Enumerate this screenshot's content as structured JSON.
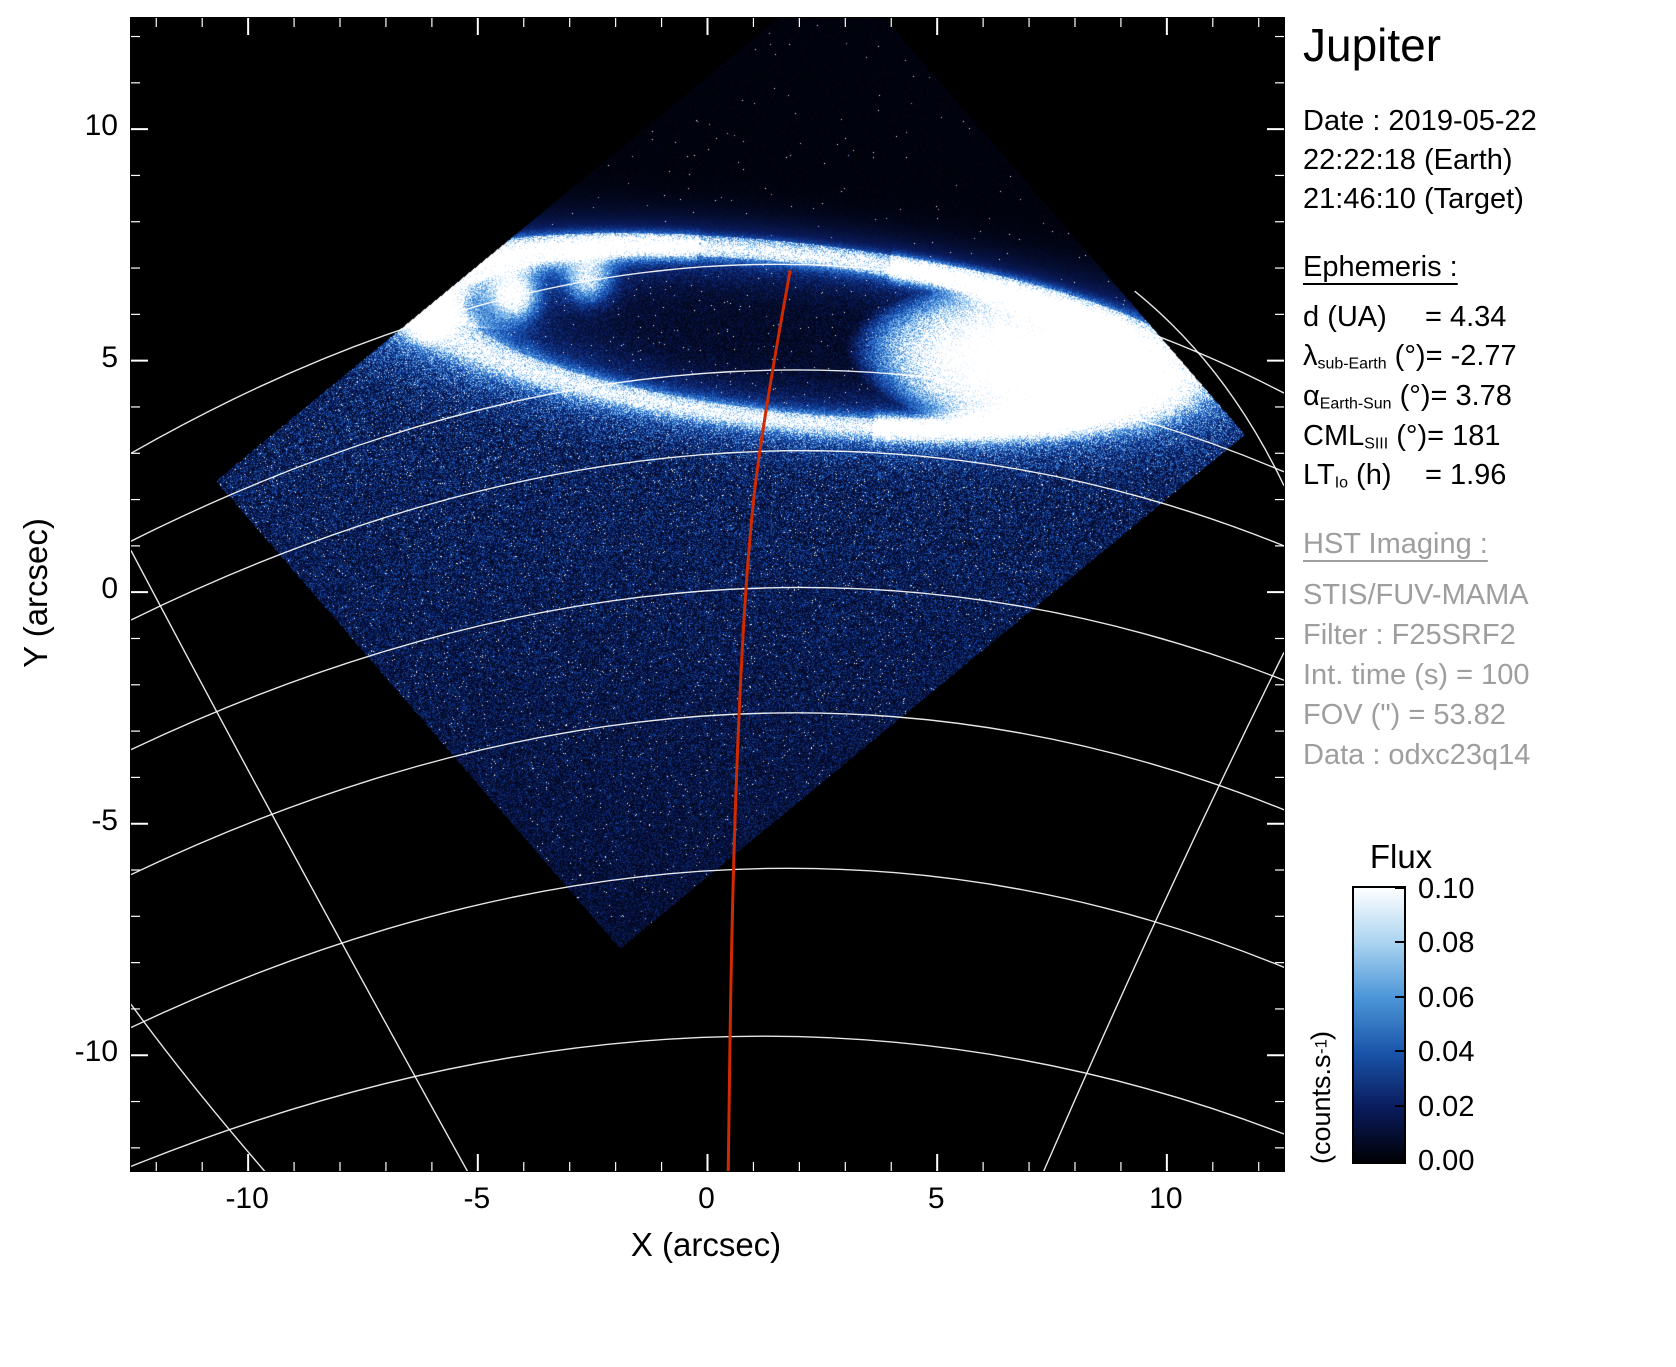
{
  "panel": {
    "title": "Jupiter",
    "date_lines": [
      "Date : 2019-05-22",
      "22:22:18 (Earth)",
      "21:46:10 (Target)"
    ],
    "ephemeris": {
      "header": "Ephemeris :",
      "lines": [
        {
          "sym": "d",
          "sub": "",
          "unit": " (UA)",
          "val": "= 4.34"
        },
        {
          "sym": "λ",
          "sub": "sub-Earth",
          "unit": " (°)",
          "val": "= -2.77"
        },
        {
          "sym": "α",
          "sub": "Earth-Sun",
          "unit": " (°)",
          "val": "= 3.78"
        },
        {
          "sym": "CML",
          "sub": "SIII",
          "unit": " (°)",
          "val": "= 181"
        },
        {
          "sym": "LT",
          "sub": "Io",
          "unit": " (h)",
          "val": "= 1.96"
        }
      ]
    },
    "hst": {
      "header": "HST Imaging :",
      "lines": [
        "STIS/FUV-MAMA",
        "Filter : F25SRF2",
        "Int. time (s) = 100",
        "FOV (\") = 53.82",
        "Data : odxc23q14"
      ],
      "color": "#9e9e9e"
    }
  },
  "colorbar": {
    "title": "Flux",
    "unit_pre": "(counts.s",
    "unit_sup": "-1",
    "unit_post": ")",
    "tick_labels": [
      "0.10",
      "0.08",
      "0.06",
      "0.04",
      "0.02",
      "0.00"
    ],
    "gradient": [
      "#ffffff",
      "#aad4f0",
      "#4c96d8",
      "#1a55aa",
      "#0a1c5e",
      "#000005"
    ]
  },
  "chart_data": {
    "type": "heatmap",
    "title": "Jupiter northern FUV aurora, HST STIS/FUV-MAMA image (counts map)",
    "xlabel": "X (arcsec)",
    "ylabel": "Y (arcsec)",
    "xlim": [
      -12.55,
      12.55
    ],
    "ylim": [
      -12.5,
      12.4
    ],
    "x_ticks": [
      -10,
      -5,
      0,
      5,
      10
    ],
    "y_ticks": [
      10,
      5,
      0,
      -5,
      -10
    ],
    "minor_tick_step": 1,
    "flux_range": [
      0.0,
      0.1
    ],
    "flux_tick_step": 0.02,
    "flux_units": "counts.s-1",
    "background": "#000000",
    "fov": {
      "polygon": [
        [
          -1.9,
          -7.7
        ],
        [
          11.7,
          3.4
        ],
        [
          2.9,
          13.5
        ],
        [
          -10.7,
          2.4
        ]
      ],
      "aurora": {
        "ring": {
          "cx": 1.8,
          "cy": 5.5,
          "a": 8.0,
          "b": 1.8,
          "rot": -6
        },
        "blob": {
          "cx": 6.4,
          "cy": 5.0,
          "a": 3.0,
          "b": 1.35,
          "rot": -6
        },
        "spots": [
          {
            "x": -6.1,
            "y": 6.0,
            "r": 0.45,
            "amp": 1.2
          },
          {
            "x": -4.2,
            "y": 6.4,
            "r": 0.5,
            "amp": 0.9
          },
          {
            "x": -2.6,
            "y": 6.75,
            "r": 0.5,
            "amp": 0.7
          }
        ]
      },
      "colormap": [
        [
          0.0,
          [
            0,
            0,
            6
          ]
        ],
        [
          0.28,
          [
            10,
            28,
            95
          ]
        ],
        [
          0.5,
          [
            25,
            85,
            185
          ]
        ],
        [
          0.68,
          [
            80,
            150,
            220
          ]
        ],
        [
          0.85,
          [
            165,
            210,
            245
          ]
        ],
        [
          1.0,
          [
            255,
            255,
            255
          ]
        ]
      ]
    },
    "overlays": {
      "graticule_color": "#ffffff",
      "latitude_arcs": [
        {
          "p1": [
            -12.55,
            3.0
          ],
          "apex": [
            0.3,
            7.05
          ],
          "p2": [
            12.55,
            4.3
          ]
        },
        {
          "p1": [
            -12.55,
            1.1
          ],
          "apex": [
            0.3,
            4.75
          ],
          "p2": [
            12.55,
            2.6
          ]
        },
        {
          "p1": [
            -12.55,
            -0.6
          ],
          "apex": [
            0.3,
            3.0
          ],
          "p2": [
            12.55,
            1.0
          ]
        },
        {
          "p1": [
            -12.55,
            -3.4
          ],
          "apex": [
            0.3,
            0.05
          ],
          "p2": [
            12.55,
            -1.9
          ]
        },
        {
          "p1": [
            -12.55,
            -6.1
          ],
          "apex": [
            0.3,
            -2.65
          ],
          "p2": [
            12.55,
            -4.7
          ]
        },
        {
          "p1": [
            -12.55,
            -9.4
          ],
          "apex": [
            0.3,
            -6.0
          ],
          "p2": [
            12.55,
            -8.1
          ]
        },
        {
          "p1": [
            -12.55,
            -12.4
          ],
          "apex": [
            0.3,
            -9.6
          ],
          "p2": [
            12.55,
            -11.7
          ]
        }
      ],
      "meridian_arcs": [
        {
          "p1": [
            -12.55,
            0.9
          ],
          "ctrl": [
            -9.2,
            -5.4
          ],
          "p2": [
            -5.2,
            -12.55
          ]
        },
        {
          "p1": [
            12.55,
            -1.3
          ],
          "ctrl": [
            9.9,
            -6.6
          ],
          "p2": [
            7.3,
            -12.55
          ]
        },
        {
          "p1": [
            -12.55,
            -8.9
          ],
          "ctrl": [
            -11.3,
            -10.6
          ],
          "p2": [
            -9.6,
            -12.55
          ]
        },
        {
          "p1": [
            9.3,
            6.5
          ],
          "ctrl": [
            11.3,
            4.9
          ],
          "p2": [
            12.55,
            2.3
          ]
        }
      ],
      "cml_line": {
        "color": "#d02a00",
        "points": [
          [
            1.8,
            6.95
          ],
          [
            1.15,
            3.4
          ],
          [
            0.85,
            0.5
          ],
          [
            0.65,
            -3.2
          ],
          [
            0.52,
            -7.5
          ],
          [
            0.45,
            -12.55
          ]
        ]
      }
    }
  }
}
